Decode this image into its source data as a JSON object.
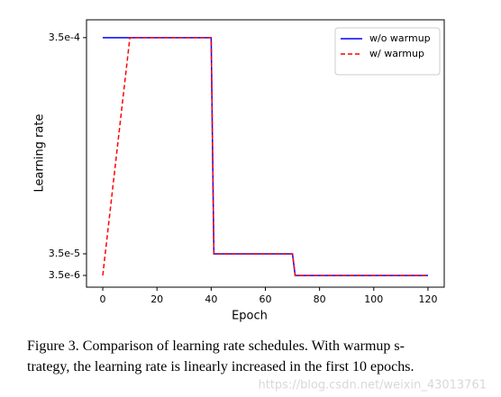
{
  "chart_data": {
    "type": "line",
    "xlabel": "Epoch",
    "ylabel": "Learning rate",
    "x": [
      0,
      10,
      40,
      41,
      70,
      71,
      120
    ],
    "series": [
      {
        "name": "w/o warmup",
        "color": "#0000ff",
        "dash": "solid",
        "x": [
          0,
          40,
          41,
          70,
          71,
          120
        ],
        "values": [
          0.00035,
          0.00035,
          3.5e-05,
          3.5e-05,
          3.5e-06,
          3.5e-06
        ]
      },
      {
        "name": "w/ warmup",
        "color": "#ff0000",
        "dash": "dashed",
        "x": [
          0,
          10,
          40,
          41,
          70,
          71,
          120
        ],
        "values": [
          3.5e-06,
          0.00035,
          0.00035,
          3.5e-05,
          3.5e-05,
          3.5e-06,
          3.5e-06
        ]
      }
    ],
    "xlim": [
      -6,
      126
    ],
    "xticks": [
      0,
      20,
      40,
      60,
      80,
      100,
      120
    ],
    "ylim": [
      -1.36e-05,
      0.000376
    ],
    "yticks": [
      {
        "value": 3.5e-06,
        "label": "3.5e-6"
      },
      {
        "value": 3.5e-05,
        "label": "3.5e-5"
      },
      {
        "value": 0.00035,
        "label": "3.5e-4"
      }
    ],
    "legend": "upper right",
    "grid": false
  },
  "caption": [
    "Figure 3. Comparison of learning rate schedules. With warmup s-",
    "trategy, the learning rate is linearly increased in the first 10 epochs."
  ],
  "watermark": "https://blog.csdn.net/weixin_43013761"
}
